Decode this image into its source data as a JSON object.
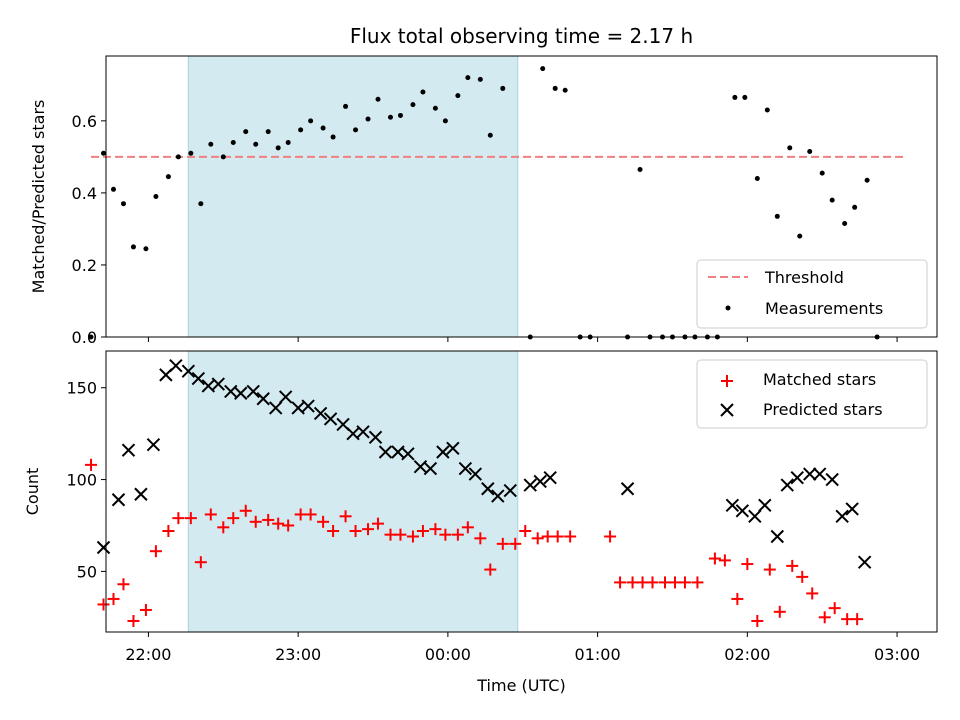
{
  "chart_data": [
    {
      "type": "scatter",
      "title": "Flux total observing time = 2.17 h",
      "xlabel": "",
      "ylabel": "Matched/Predicted stars",
      "xlim": [
        "21:43",
        "03:16"
      ],
      "ylim": [
        0,
        0.78
      ],
      "yticks": [
        0.0,
        0.2,
        0.4,
        0.6
      ],
      "yticklabels": [
        "0.0",
        "0.2",
        "0.4",
        "0.6"
      ],
      "shaded_region": {
        "start": "22:16",
        "end": "00:28",
        "color": "#d3eaf1"
      },
      "legend_position": "lower-right",
      "threshold": {
        "name": "Threshold",
        "value": 0.5,
        "from": "21:37",
        "to": "03:03",
        "color": "#f08080"
      },
      "series": [
        {
          "name": "Measurements",
          "color": "#000000",
          "marker": "dot",
          "points": [
            [
              "21:37",
              0.0
            ],
            [
              "21:42",
              0.51
            ],
            [
              "21:46",
              0.41
            ],
            [
              "21:50",
              0.37
            ],
            [
              "21:54",
              0.25
            ],
            [
              "21:59",
              0.245
            ],
            [
              "22:03",
              0.39
            ],
            [
              "22:08",
              0.445
            ],
            [
              "22:12",
              0.5
            ],
            [
              "22:17",
              0.51
            ],
            [
              "22:21",
              0.37
            ],
            [
              "22:25",
              0.535
            ],
            [
              "22:30",
              0.5
            ],
            [
              "22:34",
              0.54
            ],
            [
              "22:39",
              0.57
            ],
            [
              "22:43",
              0.535
            ],
            [
              "22:48",
              0.57
            ],
            [
              "22:52",
              0.525
            ],
            [
              "22:56",
              0.54
            ],
            [
              "23:01",
              0.575
            ],
            [
              "23:05",
              0.6
            ],
            [
              "23:10",
              0.58
            ],
            [
              "23:14",
              0.555
            ],
            [
              "23:19",
              0.64
            ],
            [
              "23:23",
              0.575
            ],
            [
              "23:28",
              0.605
            ],
            [
              "23:32",
              0.66
            ],
            [
              "23:37",
              0.61
            ],
            [
              "23:41",
              0.615
            ],
            [
              "23:46",
              0.645
            ],
            [
              "23:50",
              0.68
            ],
            [
              "23:55",
              0.635
            ],
            [
              "23:59",
              0.6
            ],
            [
              "00:04",
              0.67
            ],
            [
              "00:08",
              0.72
            ],
            [
              "00:13",
              0.715
            ],
            [
              "00:17",
              0.56
            ],
            [
              "00:22",
              0.69
            ],
            [
              "00:33",
              0.0
            ],
            [
              "00:38",
              0.745
            ],
            [
              "00:43",
              0.69
            ],
            [
              "00:47",
              0.685
            ],
            [
              "00:53",
              0.0
            ],
            [
              "00:57",
              0.0
            ],
            [
              "01:12",
              0.0
            ],
            [
              "01:17",
              0.465
            ],
            [
              "01:21",
              0.0
            ],
            [
              "01:26",
              0.0
            ],
            [
              "01:30",
              0.0
            ],
            [
              "01:35",
              0.0
            ],
            [
              "01:39",
              0.0
            ],
            [
              "01:44",
              0.0
            ],
            [
              "01:48",
              0.0
            ],
            [
              "01:55",
              0.665
            ],
            [
              "01:59",
              0.665
            ],
            [
              "02:04",
              0.44
            ],
            [
              "02:08",
              0.63
            ],
            [
              "02:12",
              0.335
            ],
            [
              "02:17",
              0.525
            ],
            [
              "02:21",
              0.28
            ],
            [
              "02:25",
              0.515
            ],
            [
              "02:30",
              0.455
            ],
            [
              "02:34",
              0.38
            ],
            [
              "02:39",
              0.315
            ],
            [
              "02:43",
              0.36
            ],
            [
              "02:48",
              0.435
            ],
            [
              "02:52",
              0.0
            ]
          ]
        }
      ]
    },
    {
      "type": "scatter",
      "title": "",
      "xlabel": "Time (UTC)",
      "ylabel": "Count",
      "xlim": [
        "21:43",
        "03:16"
      ],
      "ylim": [
        17,
        170
      ],
      "xticks": [
        "22:00",
        "23:00",
        "00:00",
        "01:00",
        "02:00",
        "03:00"
      ],
      "yticks": [
        50,
        100,
        150
      ],
      "yticklabels": [
        "50",
        "100",
        "150"
      ],
      "shaded_region": {
        "start": "22:16",
        "end": "00:28",
        "color": "#d3eaf1"
      },
      "legend_position": "upper-right",
      "series": [
        {
          "name": "Matched stars",
          "color": "#ff0000",
          "marker": "plus",
          "points": [
            [
              "21:37",
              108
            ],
            [
              "21:42",
              32
            ],
            [
              "21:46",
              35
            ],
            [
              "21:50",
              43
            ],
            [
              "21:54",
              23
            ],
            [
              "21:59",
              29
            ],
            [
              "22:03",
              61
            ],
            [
              "22:08",
              72
            ],
            [
              "22:12",
              79
            ],
            [
              "22:17",
              79
            ],
            [
              "22:21",
              55
            ],
            [
              "22:25",
              81
            ],
            [
              "22:30",
              74
            ],
            [
              "22:34",
              79
            ],
            [
              "22:39",
              83
            ],
            [
              "22:43",
              77
            ],
            [
              "22:48",
              78
            ],
            [
              "22:52",
              76
            ],
            [
              "22:56",
              75
            ],
            [
              "23:01",
              81
            ],
            [
              "23:05",
              81
            ],
            [
              "23:10",
              77
            ],
            [
              "23:14",
              72
            ],
            [
              "23:19",
              80
            ],
            [
              "23:23",
              72
            ],
            [
              "23:28",
              73
            ],
            [
              "23:32",
              76
            ],
            [
              "23:37",
              70
            ],
            [
              "23:41",
              70
            ],
            [
              "23:46",
              69
            ],
            [
              "23:50",
              72
            ],
            [
              "23:55",
              73
            ],
            [
              "23:59",
              70
            ],
            [
              "00:04",
              70
            ],
            [
              "00:08",
              74
            ],
            [
              "00:13",
              68
            ],
            [
              "00:17",
              51
            ],
            [
              "00:22",
              65
            ],
            [
              "00:27",
              65
            ],
            [
              "00:31",
              72
            ],
            [
              "00:36",
              68
            ],
            [
              "00:40",
              69
            ],
            [
              "00:44",
              69
            ],
            [
              "00:49",
              69
            ],
            [
              "01:05",
              69
            ],
            [
              "01:09",
              44
            ],
            [
              "01:14",
              44
            ],
            [
              "01:18",
              44
            ],
            [
              "01:22",
              44
            ],
            [
              "01:27",
              44
            ],
            [
              "01:31",
              44
            ],
            [
              "01:35",
              44
            ],
            [
              "01:40",
              44
            ],
            [
              "01:47",
              57
            ],
            [
              "01:51",
              56
            ],
            [
              "01:56",
              35
            ],
            [
              "02:00",
              54
            ],
            [
              "02:04",
              23
            ],
            [
              "02:09",
              51
            ],
            [
              "02:13",
              28
            ],
            [
              "02:18",
              53
            ],
            [
              "02:22",
              47
            ],
            [
              "02:26",
              38
            ],
            [
              "02:31",
              25
            ],
            [
              "02:35",
              30
            ],
            [
              "02:40",
              24
            ],
            [
              "02:44",
              24
            ]
          ]
        },
        {
          "name": "Predicted stars",
          "color": "#000000",
          "marker": "x",
          "points": [
            [
              "21:42",
              63
            ],
            [
              "21:48",
              89
            ],
            [
              "21:52",
              116
            ],
            [
              "21:57",
              92
            ],
            [
              "22:02",
              119
            ],
            [
              "22:07",
              157
            ],
            [
              "22:11",
              162
            ],
            [
              "22:16",
              159
            ],
            [
              "22:20",
              155
            ],
            [
              "22:24",
              151
            ],
            [
              "22:28",
              152
            ],
            [
              "22:33",
              148
            ],
            [
              "22:37",
              147
            ],
            [
              "22:42",
              148
            ],
            [
              "22:46",
              144
            ],
            [
              "22:51",
              139
            ],
            [
              "22:55",
              145
            ],
            [
              "23:00",
              139
            ],
            [
              "23:04",
              140
            ],
            [
              "23:09",
              136
            ],
            [
              "23:13",
              133
            ],
            [
              "23:18",
              130
            ],
            [
              "23:22",
              125
            ],
            [
              "23:26",
              126
            ],
            [
              "23:31",
              123
            ],
            [
              "23:35",
              115
            ],
            [
              "23:40",
              115
            ],
            [
              "23:44",
              114
            ],
            [
              "23:49",
              107
            ],
            [
              "23:53",
              106
            ],
            [
              "23:58",
              115
            ],
            [
              "00:02",
              117
            ],
            [
              "00:07",
              106
            ],
            [
              "00:11",
              103
            ],
            [
              "00:16",
              95
            ],
            [
              "00:20",
              91
            ],
            [
              "00:25",
              94
            ],
            [
              "00:33",
              97
            ],
            [
              "00:37",
              99
            ],
            [
              "00:41",
              101
            ],
            [
              "01:12",
              95
            ],
            [
              "01:54",
              86
            ],
            [
              "01:58",
              83
            ],
            [
              "02:03",
              80
            ],
            [
              "02:07",
              86
            ],
            [
              "02:12",
              69
            ],
            [
              "02:16",
              97
            ],
            [
              "02:20",
              101
            ],
            [
              "02:25",
              103
            ],
            [
              "02:29",
              103
            ],
            [
              "02:34",
              100
            ],
            [
              "02:38",
              80
            ],
            [
              "02:42",
              84
            ],
            [
              "02:47",
              55
            ]
          ]
        }
      ]
    }
  ]
}
